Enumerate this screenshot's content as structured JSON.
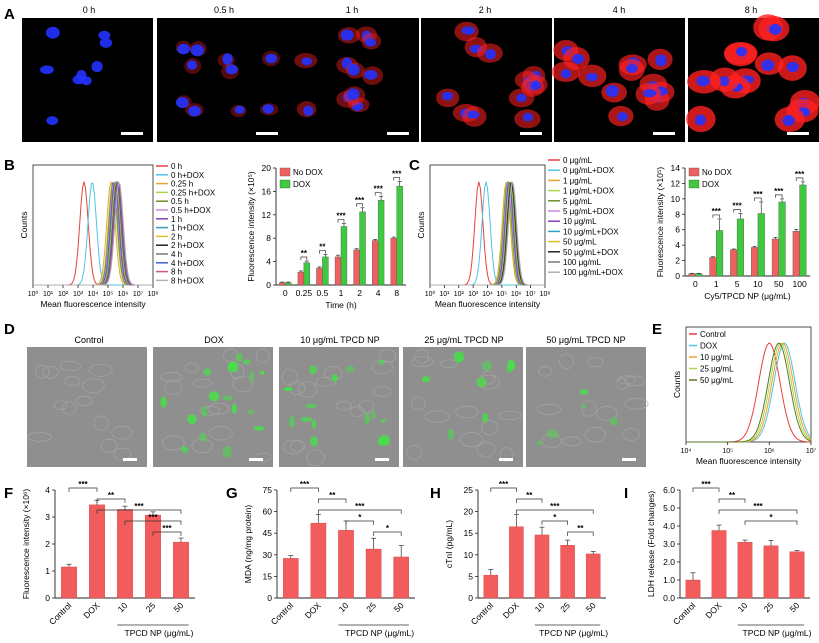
{
  "panels": {
    "A": "A",
    "B": "B",
    "C": "C",
    "D": "D",
    "E": "E",
    "F": "F",
    "G": "G",
    "H": "H",
    "I": "I"
  },
  "panel_a": {
    "time_labels": [
      "0 h",
      "0.5 h",
      "1 h",
      "2 h",
      "4 h",
      "8 h"
    ],
    "nucleus_color": "#2233ff",
    "np_color": "#ff2020"
  },
  "panel_d": {
    "labels": [
      "Control",
      "DOX",
      "10 μg/mL TPCD NP",
      "25 μg/mL TPCD NP",
      "50 μg/mL TPCD NP"
    ],
    "fluor_color": "#46e046"
  },
  "colors": {
    "no_dox": "#f06060",
    "dox": "#3ec93e",
    "bar_red": "#f25c5c",
    "axis": "#222222"
  },
  "chart_data": [
    {
      "id": "B-hist",
      "type": "histogram",
      "xlabel": "Mean fluorescence intensity",
      "ylabel": "Counts",
      "x_ticks": [
        "10⁰",
        "10¹",
        "10²",
        "10³",
        "10⁴",
        "10⁵",
        "10⁶",
        "10⁷",
        "10⁸"
      ],
      "legend": [
        {
          "name": "0 h",
          "color": "#e8413a"
        },
        {
          "name": "0 h+DOX",
          "color": "#4fc3e8"
        },
        {
          "name": "0.25 h",
          "color": "#f0a030"
        },
        {
          "name": "0.25 h+DOX",
          "color": "#a8d84a"
        },
        {
          "name": "0.5 h",
          "color": "#6b8e23"
        },
        {
          "name": "0.5 h+DOX",
          "color": "#c58be0"
        },
        {
          "name": "1 h",
          "color": "#8040c0"
        },
        {
          "name": "1 h+DOX",
          "color": "#30a0c0"
        },
        {
          "name": "2 h",
          "color": "#e0c020"
        },
        {
          "name": "2 h+DOX",
          "color": "#222222"
        },
        {
          "name": "4 h",
          "color": "#777777"
        },
        {
          "name": "4 h+DOX",
          "color": "#4060d0"
        },
        {
          "name": "8 h",
          "color": "#d05090"
        },
        {
          "name": "8 h+DOX",
          "color": "#b0b0b0"
        }
      ],
      "peaks_log10": [
        3.4,
        3.95,
        5.2,
        5.3,
        5.35,
        5.4,
        5.45,
        5.5,
        5.55,
        5.6,
        5.62,
        5.66,
        5.7,
        5.74
      ]
    },
    {
      "id": "B-bar",
      "type": "bar",
      "ylabel": "Fluorescence intensity (×10⁵)",
      "xlabel": "Time (h)",
      "categories": [
        "0",
        "0.25",
        "0.5",
        "1",
        "2",
        "4",
        "8"
      ],
      "series": [
        {
          "name": "No DOX",
          "values": [
            0.4,
            2.2,
            2.9,
            4.8,
            6.0,
            7.6,
            8.0
          ],
          "errors": [
            0.1,
            0.2,
            0.2,
            0.3,
            0.2,
            0.2,
            0.2
          ]
        },
        {
          "name": "DOX",
          "values": [
            0.4,
            3.8,
            4.8,
            10.0,
            12.5,
            14.5,
            16.9
          ],
          "errors": [
            0.1,
            0.3,
            0.4,
            0.5,
            0.7,
            0.6,
            0.8
          ]
        }
      ],
      "ylim": [
        0,
        20
      ],
      "yticks": [
        "0",
        "4",
        "8",
        "12",
        "16",
        "20"
      ],
      "significance": [
        "**",
        "**",
        "***",
        "***",
        "***",
        "***"
      ]
    },
    {
      "id": "C-hist",
      "type": "histogram",
      "xlabel": "Mean fluorescence intensity",
      "ylabel": "Counts",
      "x_ticks": [
        "10⁰",
        "10¹",
        "10²",
        "10³",
        "10⁴",
        "10⁵",
        "10⁶",
        "10⁷",
        "10⁸"
      ],
      "legend": [
        {
          "name": "0 μg/mL",
          "color": "#e8413a"
        },
        {
          "name": "0 μg/mL+DOX",
          "color": "#4fc3e8"
        },
        {
          "name": "1 μg/mL",
          "color": "#f0a030"
        },
        {
          "name": "1 μg/mL+DOX",
          "color": "#a8d84a"
        },
        {
          "name": "5 μg/mL",
          "color": "#6b8e23"
        },
        {
          "name": "5 μg/mL+DOX",
          "color": "#c58be0"
        },
        {
          "name": "10 μg/mL",
          "color": "#8040c0"
        },
        {
          "name": "10 μg/mL+DOX",
          "color": "#30a0c0"
        },
        {
          "name": "50 μg/mL",
          "color": "#e0c020"
        },
        {
          "name": "50 μg/mL+DOX",
          "color": "#222222"
        },
        {
          "name": "100 μg/mL",
          "color": "#777777"
        },
        {
          "name": "100 μg/mL+DOX",
          "color": "#b0b0b0"
        }
      ],
      "peaks_log10": [
        3.4,
        3.9,
        5.3,
        5.35,
        5.4,
        5.45,
        5.5,
        5.55,
        5.6,
        5.65,
        5.7,
        5.75
      ]
    },
    {
      "id": "C-bar",
      "type": "bar",
      "ylabel": "Fluorescence intensity (×10⁵)",
      "xlabel": "Cy5/TPCD NP (μg/mL)",
      "categories": [
        "0",
        "1",
        "5",
        "10",
        "50",
        "100"
      ],
      "series": [
        {
          "name": "No DOX",
          "values": [
            0.3,
            2.4,
            3.4,
            3.7,
            4.8,
            5.8
          ],
          "errors": [
            0.05,
            0.1,
            0.1,
            0.15,
            0.2,
            0.25
          ]
        },
        {
          "name": "DOX",
          "values": [
            0.3,
            5.9,
            7.4,
            8.1,
            9.6,
            11.8
          ],
          "errors": [
            0.05,
            1.5,
            0.7,
            1.5,
            0.4,
            0.4
          ]
        }
      ],
      "ylim": [
        0,
        14
      ],
      "yticks": [
        "0",
        "2",
        "4",
        "6",
        "8",
        "10",
        "12",
        "14"
      ],
      "significance": [
        "***",
        "***",
        "***",
        "***",
        "***"
      ]
    },
    {
      "id": "E-hist",
      "type": "histogram",
      "xlabel": "Mean fluorescence intensity",
      "ylabel": "Counts",
      "x_ticks": [
        "10⁴",
        "10⁵",
        "10⁶",
        "10⁷"
      ],
      "legend": [
        {
          "name": "Control",
          "color": "#e8413a"
        },
        {
          "name": "DOX",
          "color": "#4fc3e8"
        },
        {
          "name": "10 μg/mL",
          "color": "#f0a030"
        },
        {
          "name": "25 μg/mL",
          "color": "#a8d84a"
        },
        {
          "name": "50 μg/mL",
          "color": "#5a7a20"
        }
      ],
      "peaks_log10": [
        6.2,
        6.6,
        6.55,
        6.5,
        6.45
      ]
    },
    {
      "id": "F",
      "type": "bar",
      "ylabel": "Fluorescence intensity (×10⁶)",
      "categories": [
        "Control",
        "DOX",
        "10",
        "25",
        "50"
      ],
      "group_label": "TPCD NP (μg/mL)",
      "values": [
        1.15,
        3.45,
        3.28,
        3.07,
        2.07
      ],
      "errors": [
        0.1,
        0.17,
        0.12,
        0.12,
        0.15
      ],
      "ylim": [
        0,
        4
      ],
      "yticks": [
        "0",
        "1",
        "2",
        "3",
        "4"
      ],
      "brackets": [
        {
          "from": 0,
          "to": 1,
          "label": "***"
        },
        {
          "from": 1,
          "to": 2,
          "label": "**"
        },
        {
          "from": 1,
          "to": 4,
          "label": "***"
        },
        {
          "from": 2,
          "to": 4,
          "label": "***"
        },
        {
          "from": 3,
          "to": 4,
          "label": "***"
        }
      ]
    },
    {
      "id": "G",
      "type": "bar",
      "ylabel": "MDA (ng/mg protein)",
      "categories": [
        "Control",
        "DOX",
        "10",
        "25",
        "50"
      ],
      "group_label": "TPCD NP (μg/mL)",
      "values": [
        27.5,
        52.0,
        47.0,
        34.0,
        28.5
      ],
      "errors": [
        2.0,
        6.0,
        6.5,
        7.5,
        8.0
      ],
      "ylim": [
        0,
        75
      ],
      "yticks": [
        "0",
        "15",
        "30",
        "45",
        "60",
        "75"
      ],
      "brackets": [
        {
          "from": 0,
          "to": 1,
          "label": "***"
        },
        {
          "from": 1,
          "to": 2,
          "label": "**"
        },
        {
          "from": 1,
          "to": 4,
          "label": "***"
        },
        {
          "from": 2,
          "to": 3,
          "label": "*"
        },
        {
          "from": 3,
          "to": 4,
          "label": "*"
        }
      ]
    },
    {
      "id": "H",
      "type": "bar",
      "ylabel": "cTnI (pg/mL)",
      "categories": [
        "Control",
        "DOX",
        "10",
        "25",
        "50"
      ],
      "group_label": "TPCD NP (μg/mL)",
      "values": [
        5.3,
        16.5,
        14.6,
        12.2,
        10.2
      ],
      "errors": [
        1.3,
        2.8,
        1.8,
        1.2,
        0.6
      ],
      "ylim": [
        0,
        25
      ],
      "yticks": [
        "0",
        "5",
        "10",
        "15",
        "20",
        "25"
      ],
      "brackets": [
        {
          "from": 0,
          "to": 1,
          "label": "***"
        },
        {
          "from": 1,
          "to": 2,
          "label": "**"
        },
        {
          "from": 1,
          "to": 4,
          "label": "***"
        },
        {
          "from": 2,
          "to": 3,
          "label": "*"
        },
        {
          "from": 3,
          "to": 4,
          "label": "**"
        }
      ]
    },
    {
      "id": "I",
      "type": "bar",
      "ylabel": "LDH release (Fold changes)",
      "categories": [
        "Control",
        "DOX",
        "10",
        "25",
        "50"
      ],
      "group_label": "TPCD NP (μg/mL)",
      "values": [
        1.0,
        3.75,
        3.1,
        2.9,
        2.57
      ],
      "errors": [
        0.4,
        0.3,
        0.12,
        0.3,
        0.06
      ],
      "ylim": [
        0,
        6
      ],
      "yticks": [
        "0.0",
        "1.0",
        "2.0",
        "3.0",
        "4.0",
        "5.0",
        "6.0"
      ],
      "brackets": [
        {
          "from": 0,
          "to": 1,
          "label": "***"
        },
        {
          "from": 1,
          "to": 2,
          "label": "**"
        },
        {
          "from": 1,
          "to": 4,
          "label": "***"
        },
        {
          "from": 2,
          "to": 4,
          "label": "*"
        }
      ]
    }
  ]
}
